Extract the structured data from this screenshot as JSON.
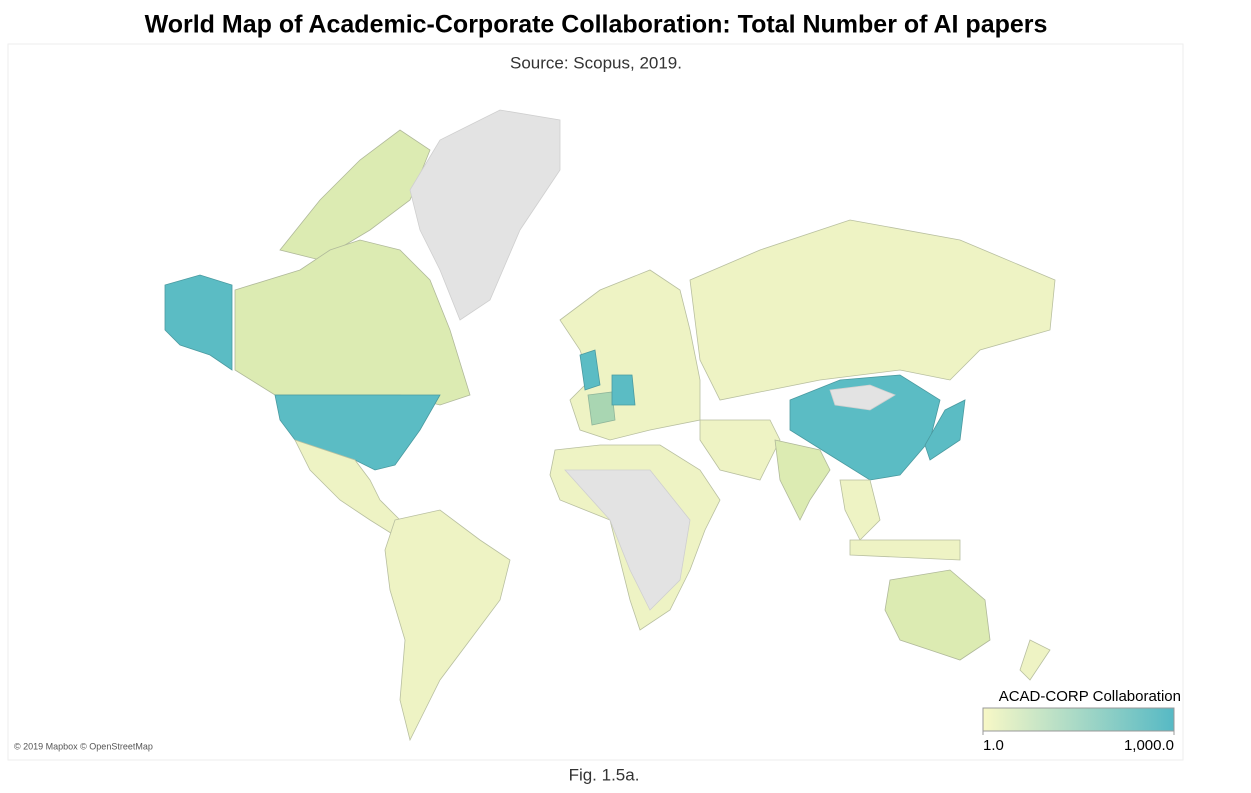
{
  "title": "World Map of Academic-Corporate Collaboration: Total Number of AI papers",
  "subtitle": "Source: Scopus, 2019.",
  "attribution": "© 2019 Mapbox © OpenStreetMap",
  "legend": {
    "title": "ACAD-CORP Collaboration",
    "ticks": [
      {
        "value": 1,
        "label": "1.0"
      },
      {
        "value": 1000,
        "label": "1,000.0"
      }
    ],
    "colors": [
      "#f8f8c6",
      "#56b9c5"
    ]
  },
  "caption": "Fig. 1.5a."
}
